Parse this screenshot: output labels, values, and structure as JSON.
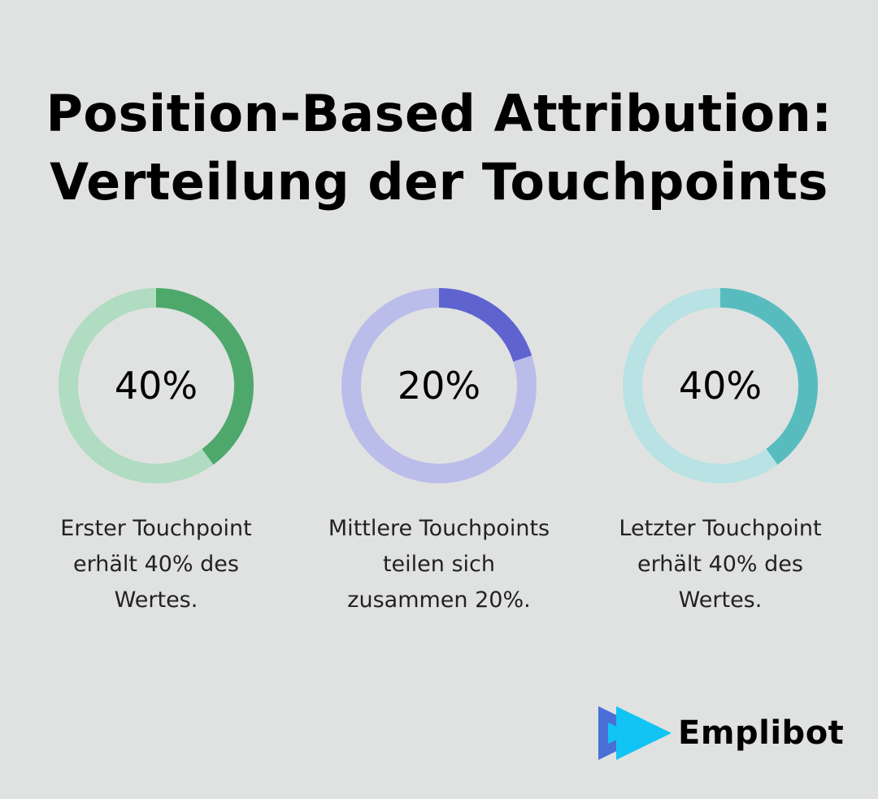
{
  "title": {
    "line1": "Position-Based Attribution:",
    "line2": "Verteilung der Touchpoints"
  },
  "chart_data": {
    "type": "pie",
    "variant": "donut-gauges",
    "items": [
      {
        "value": 40,
        "label": "40%",
        "description": [
          "Erster Touchpoint",
          "erhält 40% des",
          "Wertes."
        ],
        "color": "#4ea86c",
        "track_color": "#b0dcc1"
      },
      {
        "value": 20,
        "label": "20%",
        "description": [
          "Mittlere Touchpoints",
          "teilen sich",
          "zusammen 20%."
        ],
        "color": "#5f63cf",
        "track_color": "#babcea"
      },
      {
        "value": 40,
        "label": "40%",
        "description": [
          "Letzter Touchpoint",
          "erhält 40% des",
          "Wertes."
        ],
        "color": "#58bcbf",
        "track_color": "#b8e2e3"
      }
    ]
  },
  "brand": {
    "name": "Emplibot",
    "colors": [
      "#4a6fd6",
      "#12c4f4"
    ]
  }
}
